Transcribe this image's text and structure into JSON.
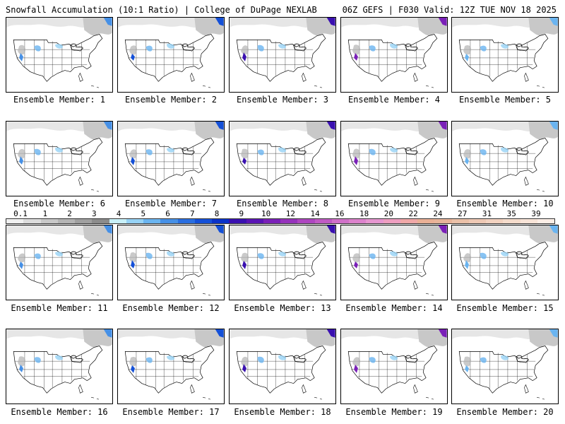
{
  "header": {
    "left": "Snowfall Accumulation (10:1 Ratio) | College of DuPage NEXLAB",
    "right": "06Z GEFS | F030 Valid: 12Z TUE NOV 18 2025"
  },
  "caption_prefix": "Ensemble Member:",
  "members": [
    {
      "num": 1,
      "label": "Ensemble Member: 1"
    },
    {
      "num": 2,
      "label": "Ensemble Member: 2"
    },
    {
      "num": 3,
      "label": "Ensemble Member: 3"
    },
    {
      "num": 4,
      "label": "Ensemble Member: 4"
    },
    {
      "num": 5,
      "label": "Ensemble Member: 5"
    },
    {
      "num": 6,
      "label": "Ensemble Member: 6"
    },
    {
      "num": 7,
      "label": "Ensemble Member: 7"
    },
    {
      "num": 8,
      "label": "Ensemble Member: 8"
    },
    {
      "num": 9,
      "label": "Ensemble Member: 9"
    },
    {
      "num": 10,
      "label": "Ensemble Member: 10"
    },
    {
      "num": 11,
      "label": "Ensemble Member: 11"
    },
    {
      "num": 12,
      "label": "Ensemble Member: 12"
    },
    {
      "num": 13,
      "label": "Ensemble Member: 13"
    },
    {
      "num": 14,
      "label": "Ensemble Member: 14"
    },
    {
      "num": 15,
      "label": "Ensemble Member: 15"
    },
    {
      "num": 16,
      "label": "Ensemble Member: 16"
    },
    {
      "num": 17,
      "label": "Ensemble Member: 17"
    },
    {
      "num": 18,
      "label": "Ensemble Member: 18"
    },
    {
      "num": 19,
      "label": "Ensemble Member: 19"
    },
    {
      "num": 20,
      "label": "Ensemble Member: 20"
    }
  ],
  "color_scale": {
    "labels": [
      "0.1",
      "1",
      "2",
      "3",
      "4",
      "5",
      "6",
      "7",
      "8",
      "9",
      "10",
      "12",
      "14",
      "16",
      "18",
      "20",
      "22",
      "24",
      "27",
      "31",
      "35",
      "39"
    ],
    "colors": [
      "#f0f0f0",
      "#dcdcdc",
      "#c8c8c8",
      "#b4b4b4",
      "#a0a0a0",
      "#8c8c8c",
      "#c8f0f8",
      "#96d2f5",
      "#6ab4f0",
      "#4690e6",
      "#2a6ee0",
      "#1450d8",
      "#0a32c8",
      "#3a10b0",
      "#5a14b4",
      "#7a20b8",
      "#9632bc",
      "#ae46c0",
      "#c05ac4",
      "#d070c8",
      "#dc82cc",
      "#e696d0",
      "#ee9ec0",
      "#f0a8a8",
      "#eab096",
      "#e8b49a",
      "#eac0a8",
      "#eec8b4",
      "#f2d2c0",
      "#f5dccc",
      "#f8e4d8",
      "#fbeee6"
    ]
  },
  "colors": {
    "background": "#ffffff",
    "map_lines": "#000000",
    "snow_light": "#b4b4b4",
    "snow_medium": "#6ab4f0",
    "snow_heavy": "#3a10b0"
  }
}
